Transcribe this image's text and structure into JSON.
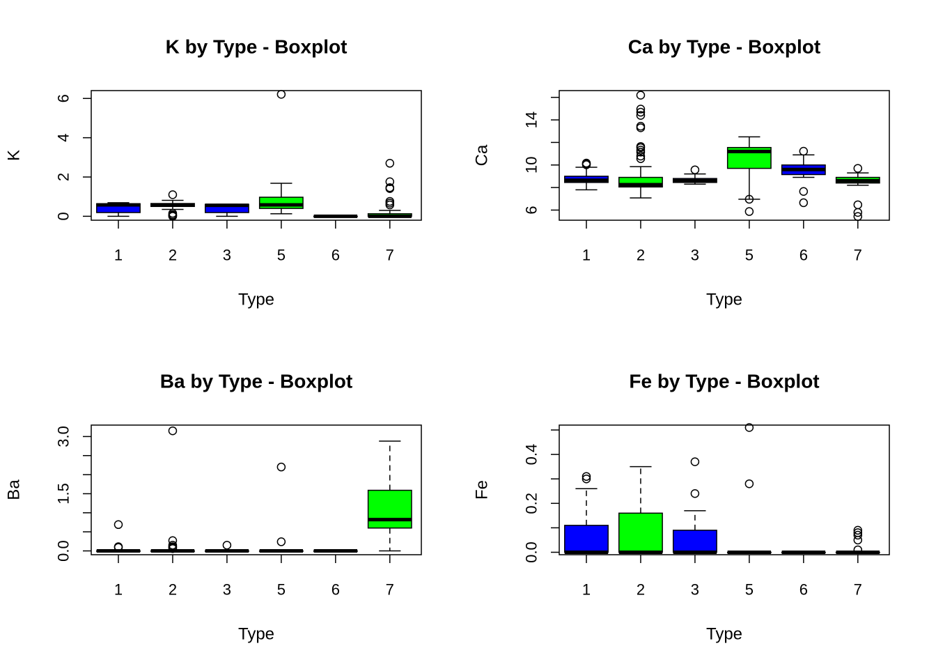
{
  "chart_data": [
    {
      "type": "boxplot",
      "title": "K by Type - Boxplot",
      "xlabel": "Type",
      "ylabel": "K",
      "categories": [
        "1",
        "2",
        "3",
        "5",
        "6",
        "7"
      ],
      "box_colors": [
        "#0000FF",
        "#0000FF",
        "#0000FF",
        "#00FF00",
        "#0000FF",
        "#00FF00"
      ],
      "ylim": [
        -0.2,
        6.4
      ],
      "yticks": [
        0,
        2,
        4,
        6
      ],
      "ytick_labels": [
        "0",
        "2",
        "4",
        "6"
      ],
      "dashed_whiskers": false,
      "boxes": [
        {
          "min": 0.0,
          "q1": 0.19,
          "median": 0.58,
          "q3": 0.64,
          "max": 0.69,
          "outliers": []
        },
        {
          "min": 0.35,
          "q1": 0.5,
          "median": 0.57,
          "q3": 0.65,
          "max": 0.81,
          "outliers": [
            1.1,
            0.15,
            0.08,
            0.05,
            0.02,
            0.0
          ]
        },
        {
          "min": 0.0,
          "q1": 0.19,
          "median": 0.56,
          "q3": 0.61,
          "max": 0.61,
          "outliers": []
        },
        {
          "min": 0.13,
          "q1": 0.4,
          "median": 0.58,
          "q3": 0.97,
          "max": 1.68,
          "outliers": [
            6.21
          ]
        },
        {
          "min": 0.0,
          "q1": 0.0,
          "median": 0.0,
          "q3": 0.0,
          "max": 0.0,
          "outliers": []
        },
        {
          "min": 0.0,
          "q1": 0.0,
          "median": 0.0,
          "q3": 0.13,
          "max": 0.3,
          "outliers": [
            2.7,
            1.76,
            1.46,
            1.41,
            0.76,
            0.67,
            0.58
          ]
        }
      ]
    },
    {
      "type": "boxplot",
      "title": "Ca by Type - Boxplot",
      "xlabel": "Type",
      "ylabel": "Ca",
      "categories": [
        "1",
        "2",
        "3",
        "5",
        "6",
        "7"
      ],
      "box_colors": [
        "#0000FF",
        "#00FF00",
        "#0000FF",
        "#00FF00",
        "#0000FF",
        "#00FF00"
      ],
      "ylim": [
        5.1,
        16.6
      ],
      "yticks": [
        6,
        8,
        10,
        12,
        14,
        16
      ],
      "ytick_labels": [
        "6",
        "",
        "10",
        "",
        "14",
        ""
      ],
      "dashed_whiskers": false,
      "boxes": [
        {
          "min": 7.8,
          "q1": 8.45,
          "median": 8.65,
          "q3": 9.0,
          "max": 9.8,
          "outliers": [
            10.17,
            10.09,
            10.02
          ]
        },
        {
          "min": 7.08,
          "q1": 8.05,
          "median": 8.25,
          "q3": 8.9,
          "max": 9.85,
          "outliers": [
            16.19,
            14.96,
            14.68,
            14.4,
            13.44,
            13.3,
            11.64,
            11.53,
            11.32,
            11.14,
            10.79,
            10.56
          ]
        },
        {
          "min": 8.3,
          "q1": 8.45,
          "median": 8.6,
          "q3": 8.8,
          "max": 9.2,
          "outliers": [
            9.57
          ]
        },
        {
          "min": 6.96,
          "q1": 9.7,
          "median": 11.2,
          "q3": 11.55,
          "max": 12.5,
          "outliers": [
            6.96,
            5.87
          ]
        },
        {
          "min": 8.9,
          "q1": 9.15,
          "median": 9.6,
          "q3": 10.0,
          "max": 10.9,
          "outliers": [
            11.22,
            7.65,
            6.65
          ]
        },
        {
          "min": 8.2,
          "q1": 8.4,
          "median": 8.6,
          "q3": 8.9,
          "max": 9.3,
          "outliers": [
            9.7,
            6.47,
            5.79,
            5.43
          ]
        }
      ]
    },
    {
      "type": "boxplot",
      "title": "Ba by Type - Boxplot",
      "xlabel": "Type",
      "ylabel": "Ba",
      "categories": [
        "1",
        "2",
        "3",
        "5",
        "6",
        "7"
      ],
      "box_colors": [
        "#0000FF",
        "#0000FF",
        "#0000FF",
        "#00FF00",
        "#0000FF",
        "#00FF00"
      ],
      "ylim": [
        -0.1,
        3.3
      ],
      "yticks": [
        0,
        0.5,
        1.0,
        1.5,
        2.0,
        2.5,
        3.0
      ],
      "ytick_labels": [
        "0.0",
        "",
        "",
        "1.5",
        "",
        "",
        "3.0"
      ],
      "dashed_whiskers": true,
      "boxes": [
        {
          "min": 0.0,
          "q1": 0.0,
          "median": 0.0,
          "q3": 0.0,
          "max": 0.0,
          "outliers": [
            0.69,
            0.11,
            0.09
          ]
        },
        {
          "min": 0.0,
          "q1": 0.0,
          "median": 0.0,
          "q3": 0.0,
          "max": 0.0,
          "outliers": [
            3.15,
            0.27,
            0.15,
            0.11,
            0.09,
            0.06
          ]
        },
        {
          "min": 0.0,
          "q1": 0.0,
          "median": 0.0,
          "q3": 0.0,
          "max": 0.0,
          "outliers": [
            0.15
          ]
        },
        {
          "min": 0.0,
          "q1": 0.0,
          "median": 0.0,
          "q3": 0.0,
          "max": 0.0,
          "outliers": [
            2.2,
            0.24
          ]
        },
        {
          "min": 0.0,
          "q1": 0.0,
          "median": 0.0,
          "q3": 0.0,
          "max": 0.0,
          "outliers": []
        },
        {
          "min": 0.0,
          "q1": 0.6,
          "median": 0.82,
          "q3": 1.59,
          "max": 2.88,
          "outliers": []
        }
      ]
    },
    {
      "type": "boxplot",
      "title": "Fe by Type - Boxplot",
      "xlabel": "Type",
      "ylabel": "Fe",
      "categories": [
        "1",
        "2",
        "3",
        "5",
        "6",
        "7"
      ],
      "box_colors": [
        "#0000FF",
        "#00FF00",
        "#0000FF",
        "#00FF00",
        "#0000FF",
        "#00FF00"
      ],
      "ylim": [
        -0.01,
        0.52
      ],
      "yticks": [
        0,
        0.1,
        0.2,
        0.3,
        0.4,
        0.5
      ],
      "ytick_labels": [
        "0.0",
        "",
        "0.2",
        "",
        "0.4",
        ""
      ],
      "dashed_whiskers": true,
      "boxes": [
        {
          "min": 0.0,
          "q1": 0.0,
          "median": 0.0,
          "q3": 0.11,
          "max": 0.26,
          "outliers": [
            0.31,
            0.3
          ]
        },
        {
          "min": 0.0,
          "q1": 0.0,
          "median": 0.0,
          "q3": 0.16,
          "max": 0.35,
          "outliers": []
        },
        {
          "min": 0.0,
          "q1": 0.0,
          "median": 0.0,
          "q3": 0.09,
          "max": 0.17,
          "outliers": [
            0.37,
            0.24
          ]
        },
        {
          "min": 0.0,
          "q1": 0.0,
          "median": 0.0,
          "q3": 0.0,
          "max": 0.0,
          "outliers": [
            0.51,
            0.28
          ]
        },
        {
          "min": 0.0,
          "q1": 0.0,
          "median": 0.0,
          "q3": 0.0,
          "max": 0.0,
          "outliers": []
        },
        {
          "min": 0.0,
          "q1": 0.0,
          "median": 0.0,
          "q3": 0.0,
          "max": 0.0,
          "outliers": [
            0.09,
            0.08,
            0.07,
            0.05,
            0.01
          ]
        }
      ]
    }
  ]
}
